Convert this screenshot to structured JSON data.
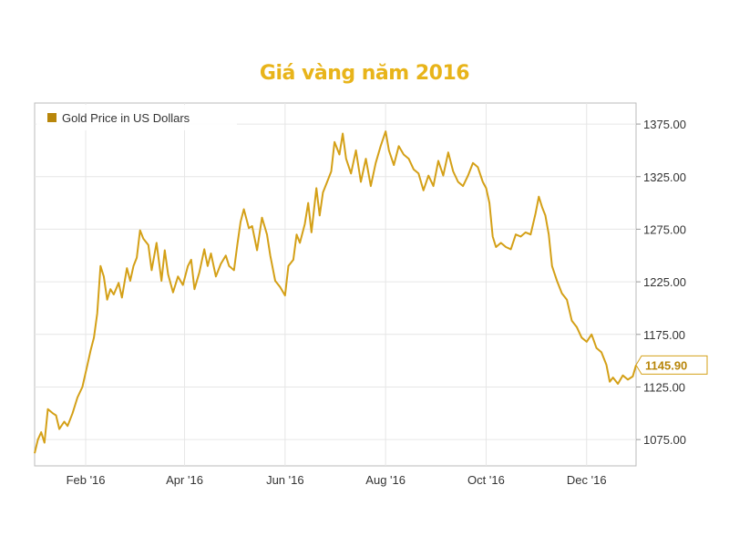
{
  "title": "Giá vàng năm 2016",
  "colors": {
    "series": "#d4a017",
    "title": "#e8b41a",
    "grid": "#e6e6e6",
    "axis": "#bbbbbb",
    "legend_swatch": "#b8860b"
  },
  "chart_data": {
    "type": "line",
    "title": "Giá vàng năm 2016",
    "grid": true,
    "legend_position": "top-left",
    "y_axis_position": "right",
    "ylim": [
      1050,
      1395
    ],
    "yticks": [
      "1075.00",
      "1125.00",
      "1175.00",
      "1225.00",
      "1275.00",
      "1325.00",
      "1375.00"
    ],
    "x_tick_labels": [
      "Feb '16",
      "Apr '16",
      "Jun '16",
      "Aug '16",
      "Oct '16",
      "Dec '16"
    ],
    "x_tick_dates": [
      "2016-02-01",
      "2016-04-01",
      "2016-06-01",
      "2016-08-01",
      "2016-10-01",
      "2016-12-01"
    ],
    "xlim": [
      "2016-01-01",
      "2016-12-31"
    ],
    "last_value_label": "1145.90",
    "series": [
      {
        "name": "Gold Price in US Dollars",
        "x": [
          "2016-01-01",
          "2016-01-03",
          "2016-01-05",
          "2016-01-07",
          "2016-01-09",
          "2016-01-12",
          "2016-01-14",
          "2016-01-16",
          "2016-01-19",
          "2016-01-21",
          "2016-01-24",
          "2016-01-27",
          "2016-01-30",
          "2016-02-02",
          "2016-02-04",
          "2016-02-06",
          "2016-02-08",
          "2016-02-10",
          "2016-02-12",
          "2016-02-14",
          "2016-02-16",
          "2016-02-18",
          "2016-02-21",
          "2016-02-23",
          "2016-02-26",
          "2016-02-28",
          "2016-03-01",
          "2016-03-03",
          "2016-03-05",
          "2016-03-07",
          "2016-03-10",
          "2016-03-12",
          "2016-03-15",
          "2016-03-18",
          "2016-03-20",
          "2016-03-22",
          "2016-03-25",
          "2016-03-28",
          "2016-03-31",
          "2016-04-03",
          "2016-04-05",
          "2016-04-07",
          "2016-04-10",
          "2016-04-13",
          "2016-04-15",
          "2016-04-17",
          "2016-04-20",
          "2016-04-23",
          "2016-04-26",
          "2016-04-28",
          "2016-05-01",
          "2016-05-03",
          "2016-05-05",
          "2016-05-07",
          "2016-05-10",
          "2016-05-12",
          "2016-05-15",
          "2016-05-18",
          "2016-05-21",
          "2016-05-23",
          "2016-05-26",
          "2016-05-29",
          "2016-06-01",
          "2016-06-03",
          "2016-06-06",
          "2016-06-08",
          "2016-06-10",
          "2016-06-13",
          "2016-06-15",
          "2016-06-17",
          "2016-06-20",
          "2016-06-22",
          "2016-06-24",
          "2016-06-27",
          "2016-06-29",
          "2016-07-01",
          "2016-07-04",
          "2016-07-06",
          "2016-07-08",
          "2016-07-11",
          "2016-07-14",
          "2016-07-17",
          "2016-07-20",
          "2016-07-23",
          "2016-07-26",
          "2016-07-29",
          "2016-08-01",
          "2016-08-03",
          "2016-08-06",
          "2016-08-09",
          "2016-08-12",
          "2016-08-15",
          "2016-08-18",
          "2016-08-21",
          "2016-08-24",
          "2016-08-27",
          "2016-08-30",
          "2016-09-02",
          "2016-09-05",
          "2016-09-08",
          "2016-09-11",
          "2016-09-14",
          "2016-09-17",
          "2016-09-20",
          "2016-09-23",
          "2016-09-26",
          "2016-09-29",
          "2016-10-01",
          "2016-10-03",
          "2016-10-05",
          "2016-10-07",
          "2016-10-10",
          "2016-10-13",
          "2016-10-16",
          "2016-10-19",
          "2016-10-22",
          "2016-10-25",
          "2016-10-28",
          "2016-10-31",
          "2016-11-02",
          "2016-11-04",
          "2016-11-06",
          "2016-11-08",
          "2016-11-10",
          "2016-11-13",
          "2016-11-16",
          "2016-11-19",
          "2016-11-22",
          "2016-11-25",
          "2016-11-28",
          "2016-12-01",
          "2016-12-04",
          "2016-12-07",
          "2016-12-10",
          "2016-12-13",
          "2016-12-15",
          "2016-12-17",
          "2016-12-20",
          "2016-12-23",
          "2016-12-26",
          "2016-12-29",
          "2016-12-31"
        ],
        "y": [
          1062,
          1075,
          1082,
          1072,
          1104,
          1100,
          1098,
          1085,
          1092,
          1088,
          1100,
          1115,
          1125,
          1146,
          1160,
          1172,
          1195,
          1240,
          1230,
          1208,
          1218,
          1213,
          1224,
          1210,
          1238,
          1226,
          1240,
          1248,
          1274,
          1266,
          1260,
          1236,
          1262,
          1226,
          1255,
          1232,
          1215,
          1230,
          1222,
          1240,
          1246,
          1218,
          1234,
          1256,
          1240,
          1252,
          1230,
          1242,
          1250,
          1240,
          1236,
          1260,
          1282,
          1294,
          1276,
          1278,
          1255,
          1286,
          1270,
          1250,
          1226,
          1220,
          1212,
          1240,
          1246,
          1270,
          1262,
          1280,
          1300,
          1272,
          1314,
          1288,
          1310,
          1322,
          1330,
          1358,
          1346,
          1366,
          1342,
          1328,
          1350,
          1320,
          1342,
          1316,
          1338,
          1354,
          1368,
          1350,
          1336,
          1354,
          1346,
          1342,
          1332,
          1328,
          1312,
          1326,
          1316,
          1340,
          1326,
          1348,
          1330,
          1320,
          1316,
          1326,
          1338,
          1334,
          1320,
          1314,
          1300,
          1268,
          1258,
          1262,
          1258,
          1256,
          1270,
          1268,
          1272,
          1270,
          1290,
          1306,
          1296,
          1288,
          1270,
          1240,
          1226,
          1214,
          1208,
          1188,
          1182,
          1172,
          1168,
          1175,
          1162,
          1158,
          1146,
          1130,
          1134,
          1128,
          1136,
          1132,
          1135,
          1145.9
        ]
      }
    ]
  }
}
